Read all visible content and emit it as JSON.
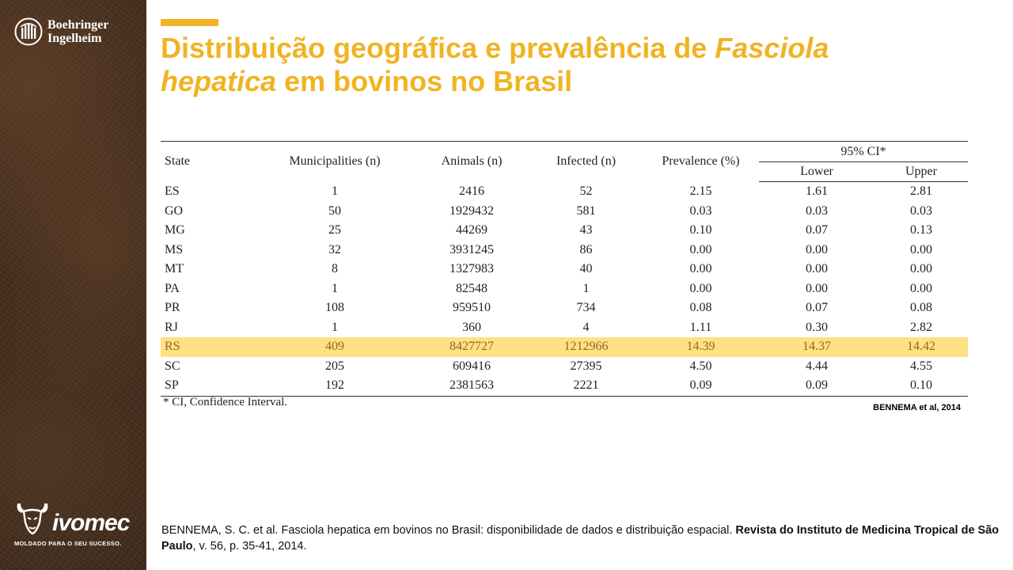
{
  "brand": {
    "company_line1": "Boehringer",
    "company_line2": "Ingelheim",
    "product": "ivomec",
    "product_tagline": "MOLDADO PARA O SEU SUCESSO."
  },
  "slide": {
    "title_part1": "Distribuição geográfica e prevalência de ",
    "title_italic1": "Fasciola",
    "title_italic2": "hepatica",
    "title_part2": " em bovinos no Brasil",
    "accent_color": "#f0b323",
    "highlight_color": "#ffe082"
  },
  "table": {
    "headers": {
      "state": "State",
      "municipalities": "Municipalities (n)",
      "animals": "Animals (n)",
      "infected": "Infected (n)",
      "prevalence": "Prevalence (%)",
      "ci": "95% CI*",
      "lower": "Lower",
      "upper": "Upper"
    },
    "rows": [
      [
        "ES",
        "1",
        "2416",
        "52",
        "2.15",
        "1.61",
        "2.81"
      ],
      [
        "GO",
        "50",
        "1929432",
        "581",
        "0.03",
        "0.03",
        "0.03"
      ],
      [
        "MG",
        "25",
        "44269",
        "43",
        "0.10",
        "0.07",
        "0.13"
      ],
      [
        "MS",
        "32",
        "3931245",
        "86",
        "0.00",
        "0.00",
        "0.00"
      ],
      [
        "MT",
        "8",
        "1327983",
        "40",
        "0.00",
        "0.00",
        "0.00"
      ],
      [
        "PA",
        "1",
        "82548",
        "1",
        "0.00",
        "0.00",
        "0.00"
      ],
      [
        "PR",
        "108",
        "959510",
        "734",
        "0.08",
        "0.07",
        "0.08"
      ],
      [
        "RJ",
        "1",
        "360",
        "4",
        "1.11",
        "0.30",
        "2.82"
      ],
      [
        "RS",
        "409",
        "8427727",
        "1212966",
        "14.39",
        "14.37",
        "14.42"
      ],
      [
        "SC",
        "205",
        "609416",
        "27395",
        "4.50",
        "4.44",
        "4.55"
      ],
      [
        "SP",
        "192",
        "2381563",
        "2221",
        "0.09",
        "0.09",
        "0.10"
      ]
    ],
    "highlighted_state": "RS",
    "footnote": "* CI, Confidence Interval."
  },
  "citation_short": "BENNEMA et al, 2014",
  "reference": {
    "plain": "BENNEMA, S. C. et al. Fasciola hepatica em bovinos no Brasil: disponibilidade de dados e distribuição espacial. ",
    "bold": "Revista do Instituto de Medicina Tropical de São Paulo",
    "tail": ", v. 56, p. 35-41, 2014."
  }
}
